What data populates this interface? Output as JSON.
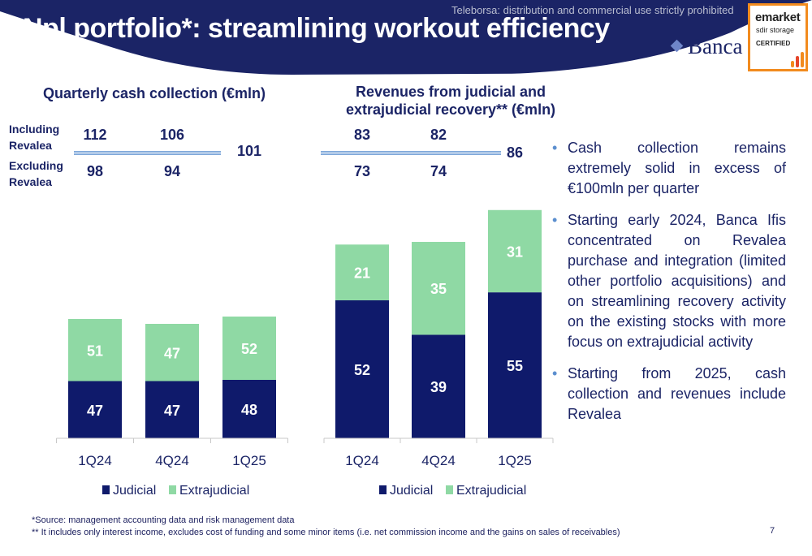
{
  "header": {
    "title": "Npl portfolio*: streamlining workout efficiency",
    "watermark": "Teleborsa: distribution and commercial use strictly prohibited",
    "brand": "Banca",
    "badge": {
      "line1": "emarket",
      "line2": "sdir storage",
      "line3": "CERTIFIED"
    }
  },
  "colors": {
    "header_bg": "#1b2466",
    "judicial": "#0f1a6b",
    "extrajudicial": "#8fd9a4",
    "accent": "#5c8fcf"
  },
  "legend": {
    "judicial": "Judicial",
    "extrajudicial": "Extrajudicial"
  },
  "chart_data": [
    {
      "type": "bar",
      "stacked": true,
      "title": "Quarterly cash collection (€mln)",
      "categories": [
        "1Q24",
        "4Q24",
        "1Q25"
      ],
      "series": [
        {
          "name": "Judicial",
          "values": [
            47,
            47,
            48
          ]
        },
        {
          "name": "Extrajudicial",
          "values": [
            51,
            47,
            52
          ]
        }
      ],
      "top_rows": [
        {
          "label": "Including Revalea",
          "values": [
            "112",
            "106"
          ]
        },
        {
          "label": "Excluding Revalea",
          "values": [
            "98",
            "94"
          ]
        }
      ],
      "last_total": "101"
    },
    {
      "type": "bar",
      "stacked": true,
      "title": "Revenues from judicial and extrajudicial recovery** (€mln)",
      "categories": [
        "1Q24",
        "4Q24",
        "1Q25"
      ],
      "series": [
        {
          "name": "Judicial",
          "values": [
            52,
            39,
            55
          ]
        },
        {
          "name": "Extrajudicial",
          "values": [
            21,
            35,
            31
          ]
        }
      ],
      "top_rows": [
        {
          "label": "",
          "values": [
            "83",
            "82"
          ]
        },
        {
          "label": "",
          "values": [
            "73",
            "74"
          ]
        }
      ],
      "last_total": "86"
    }
  ],
  "bullets": [
    "Cash collection remains extremely solid in excess of €100mln per quarter",
    "Starting early 2024, Banca Ifis concentrated on Revalea purchase and integration (limited other portfolio acquisitions) and on streamlining recovery activity on the existing stocks with more focus on extrajudicial activity",
    "Starting from 2025, cash collection and revenues include Revalea"
  ],
  "footnotes": [
    "*Source: management accounting data and risk management data",
    "** It includes only interest income, excludes cost of funding and some minor items (i.e. net commission income and the gains on sales of receivables)"
  ],
  "page_number": "7"
}
